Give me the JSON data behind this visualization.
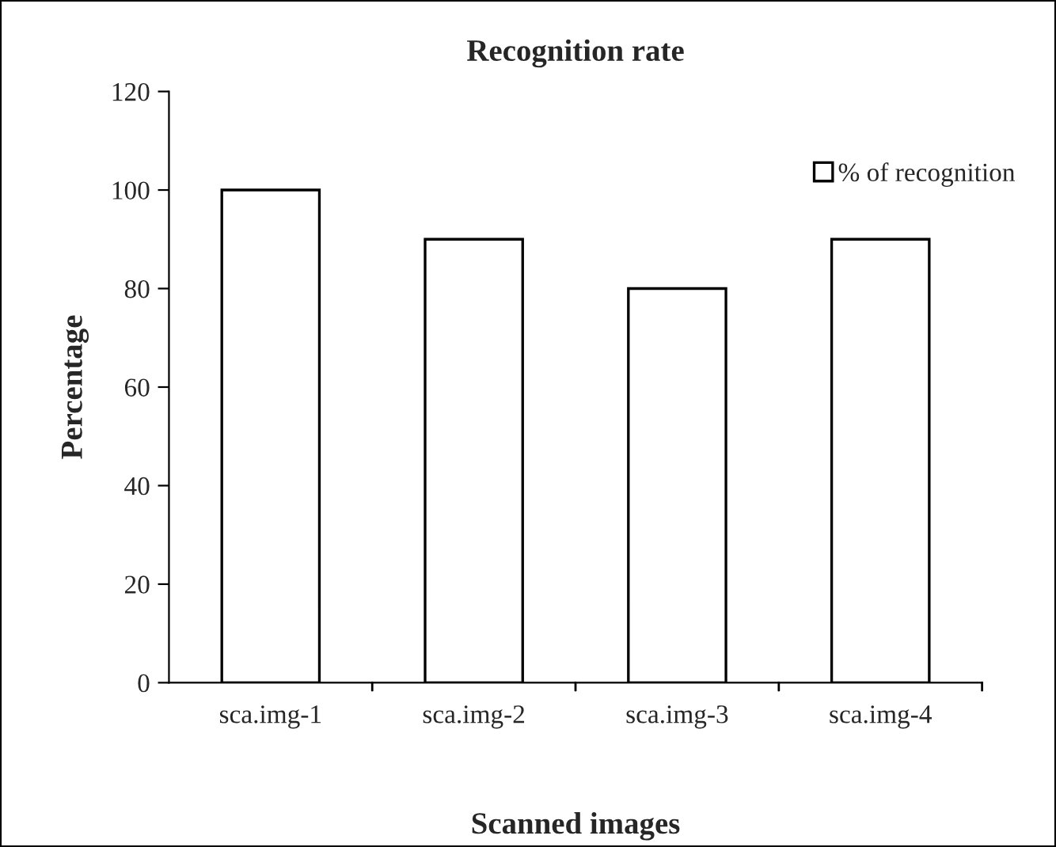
{
  "chart_data": {
    "type": "bar",
    "title": "Recognition rate",
    "xlabel": "Scanned images",
    "ylabel": "Percentage",
    "categories": [
      "sca.img-1",
      "sca.img-2",
      "sca.img-3",
      "sca.img-4"
    ],
    "series": [
      {
        "name": "% of recognition",
        "color": "#ffffff",
        "values": [
          100,
          90,
          80,
          90
        ]
      }
    ],
    "ylim": [
      0,
      120
    ],
    "yticks": [
      0,
      20,
      40,
      60,
      80,
      100,
      120
    ],
    "grid": false,
    "legend": "top right"
  }
}
